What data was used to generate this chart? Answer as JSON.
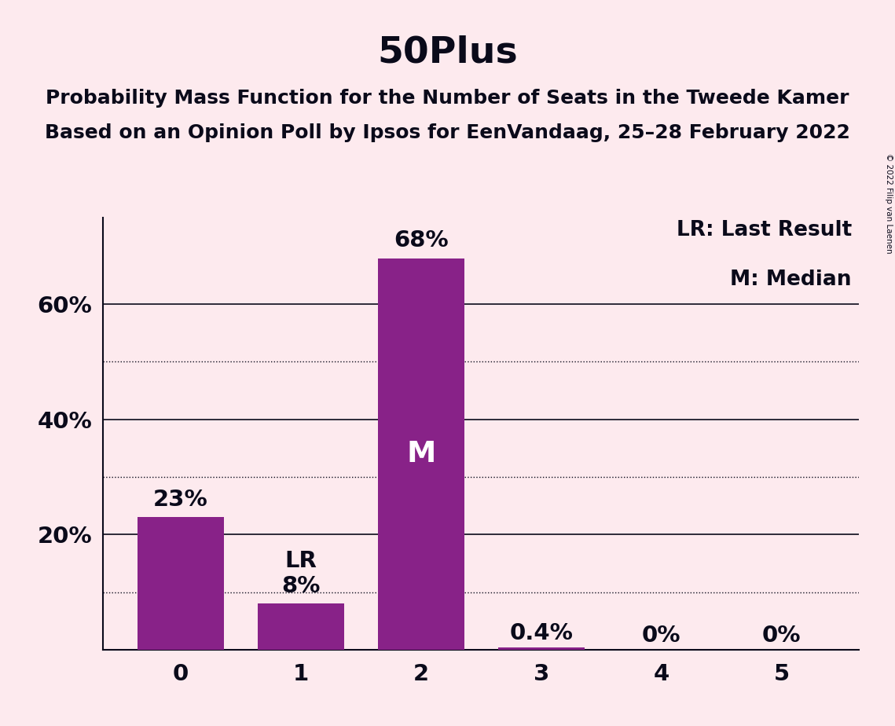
{
  "title": "50Plus",
  "subtitle1": "Probability Mass Function for the Number of Seats in the Tweede Kamer",
  "subtitle2": "Based on an Opinion Poll by Ipsos for EenVandaag, 25–28 February 2022",
  "categories": [
    0,
    1,
    2,
    3,
    4,
    5
  ],
  "values": [
    0.23,
    0.08,
    0.68,
    0.004,
    0.0,
    0.0
  ],
  "bar_labels": [
    "23%",
    "8%",
    "68%",
    "0.4%",
    "0%",
    "0%"
  ],
  "bar_color": "#882288",
  "background_color": "#FDEAEE",
  "text_color": "#0a0a1a",
  "yticks_solid": [
    0.2,
    0.4,
    0.6
  ],
  "ytick_labels_solid": [
    "20%",
    "40%",
    "60%"
  ],
  "yticks_dotted": [
    0.1,
    0.3,
    0.5
  ],
  "ylim": [
    0,
    0.75
  ],
  "lr_bar_index": 1,
  "median_bar_index": 2,
  "lr_label": "LR",
  "median_label": "M",
  "legend_lr": "LR: Last Result",
  "legend_m": "M: Median",
  "copyright": "© 2022 Filip van Laenen",
  "title_fontsize": 34,
  "subtitle_fontsize": 18,
  "label_fontsize": 21,
  "tick_fontsize": 21,
  "legend_fontsize": 19,
  "bar_width": 0.72
}
